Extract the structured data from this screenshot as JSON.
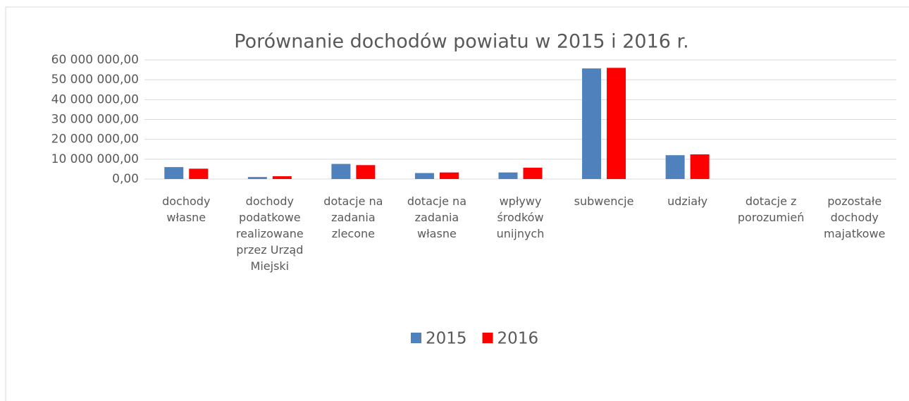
{
  "chart_data": {
    "type": "bar",
    "title": "Porównanie dochodów powiatu w 2015 i 2016 r.",
    "categories": [
      "dochody własne",
      "dochody podatkowe realizowane przez Urząd Miejski",
      "dotacje na zadania zlecone",
      "dotacje na zadania własne",
      "wpływy środków unijnych",
      "subwencje",
      "udziały",
      "dotacje z porozumień",
      "pozostałe dochody majatkowe"
    ],
    "series": [
      {
        "name": "2015",
        "color": "#4f81bd",
        "values": [
          6000000,
          1000000,
          7600000,
          3000000,
          3300000,
          55700000,
          12000000,
          0,
          0
        ]
      },
      {
        "name": "2016",
        "color": "#ff0000",
        "values": [
          5200000,
          1400000,
          7000000,
          3300000,
          5700000,
          56000000,
          12400000,
          0,
          0
        ]
      }
    ],
    "ylim": [
      0,
      60000000
    ],
    "yticks": [
      {
        "value": 0,
        "label": "0,00"
      },
      {
        "value": 10000000,
        "label": "10 000 000,00"
      },
      {
        "value": 20000000,
        "label": "20 000 000,00"
      },
      {
        "value": 30000000,
        "label": "30 000 000,00"
      },
      {
        "value": 40000000,
        "label": "40 000 000,00"
      },
      {
        "value": 50000000,
        "label": "50 000 000,00"
      },
      {
        "value": 60000000,
        "label": "60 000 000,00"
      }
    ],
    "grid": true,
    "legend": "bottom"
  }
}
